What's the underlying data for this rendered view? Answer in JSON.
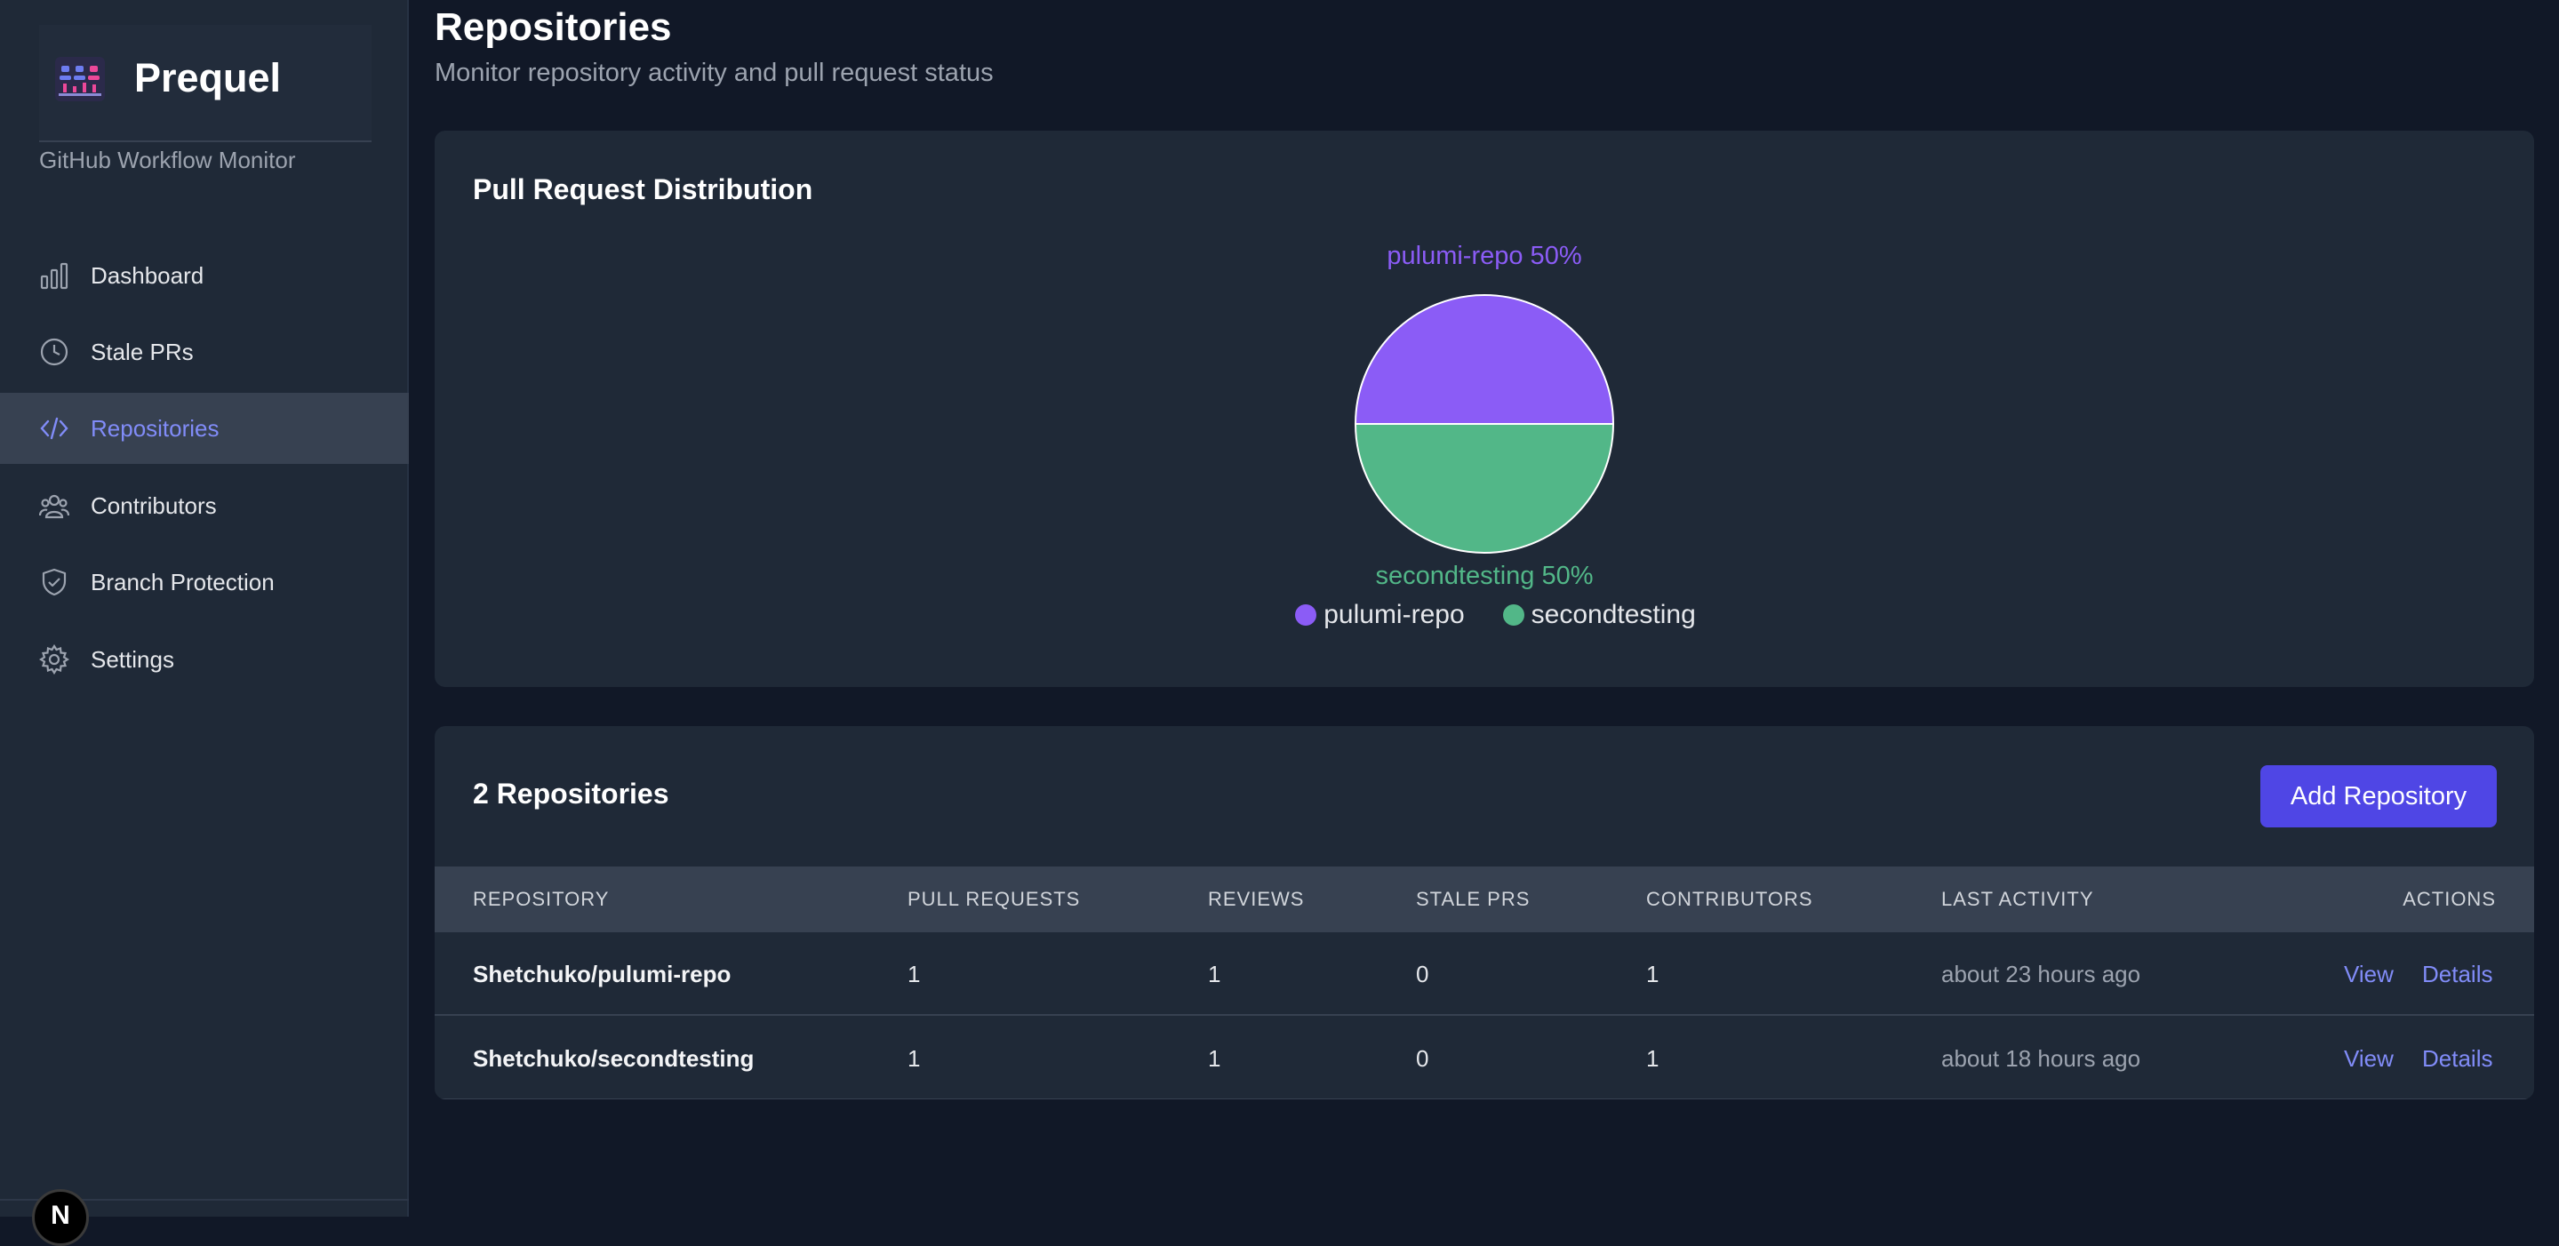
{
  "brand": {
    "name": "Prequel",
    "subtitle": "GitHub Workflow Monitor"
  },
  "sidebar": {
    "items": [
      {
        "label": "Dashboard",
        "icon": "bar-chart-icon",
        "active": false
      },
      {
        "label": "Stale PRs",
        "icon": "clock-icon",
        "active": false
      },
      {
        "label": "Repositories",
        "icon": "code-icon",
        "active": true
      },
      {
        "label": "Contributors",
        "icon": "users-icon",
        "active": false
      },
      {
        "label": "Branch Protection",
        "icon": "shield-check-icon",
        "active": false
      },
      {
        "label": "Settings",
        "icon": "gear-icon",
        "active": false
      }
    ],
    "avatar_initial": "N"
  },
  "page": {
    "title": "Repositories",
    "subtitle": "Monitor repository activity and pull request status"
  },
  "chart_card": {
    "title": "Pull Request Distribution"
  },
  "chart_data": {
    "type": "pie",
    "title": "Pull Request Distribution",
    "categories": [
      "pulumi-repo",
      "secondtesting"
    ],
    "values": [
      50,
      50
    ],
    "labels": [
      "pulumi-repo 50%",
      "secondtesting 50%"
    ],
    "colors": [
      "#8b5cf6",
      "#52b788"
    ],
    "legend": "bottom"
  },
  "table_card": {
    "title": "2 Repositories",
    "add_button": "Add Repository",
    "columns": [
      "REPOSITORY",
      "PULL REQUESTS",
      "REVIEWS",
      "STALE PRS",
      "CONTRIBUTORS",
      "LAST ACTIVITY",
      "ACTIONS"
    ],
    "rows": [
      {
        "repository": "Shetchuko/pulumi-repo",
        "pull_requests": "1",
        "reviews": "1",
        "stale_prs": "0",
        "contributors": "1",
        "last_activity": "about 23 hours ago",
        "view": "View",
        "details": "Details"
      },
      {
        "repository": "Shetchuko/secondtesting",
        "pull_requests": "1",
        "reviews": "1",
        "stale_prs": "0",
        "contributors": "1",
        "last_activity": "about 18 hours ago",
        "view": "View",
        "details": "Details"
      }
    ]
  },
  "colors": {
    "accent": "#4f46e5",
    "active_nav": "#818cf8",
    "background": "#111827",
    "card": "#1f2937"
  }
}
